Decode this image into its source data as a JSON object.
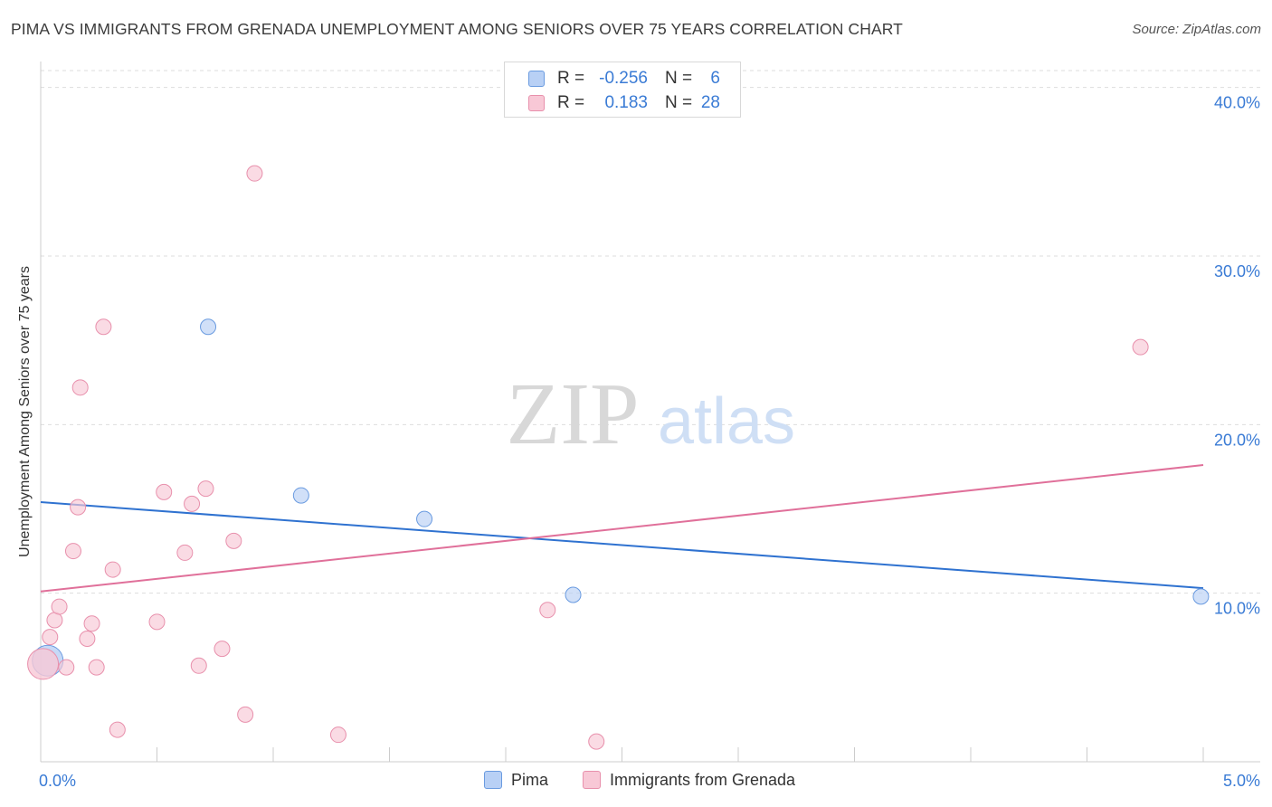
{
  "title": "PIMA VS IMMIGRANTS FROM GRENADA UNEMPLOYMENT AMONG SENIORS OVER 75 YEARS CORRELATION CHART",
  "source": "Source: ZipAtlas.com",
  "watermark": {
    "zip": "ZIP",
    "atlas": "atlas"
  },
  "legend": {
    "rows": [
      {
        "r_label": "R =",
        "r_value": "-0.256",
        "n_label": "N =",
        "n_value": "6"
      },
      {
        "r_label": "R =",
        "r_value": "0.183",
        "n_label": "N =",
        "n_value": "28"
      }
    ]
  },
  "colors": {
    "pima_fill": "#b8d0f5",
    "pima_stroke": "#6a9be0",
    "pima_line": "#2f72d0",
    "grenada_fill": "#f8c8d6",
    "grenada_stroke": "#e890ac",
    "grenada_line": "#e0709a",
    "tick_label": "#3a7bd5",
    "grid": "#dddddd"
  },
  "chart_data": {
    "type": "scatter",
    "xlabel": "",
    "ylabel": "Unemployment Among Seniors over 75 years",
    "xlim": [
      0,
      5
    ],
    "ylim": [
      0,
      41
    ],
    "x_tick_labels": [
      {
        "value": 0,
        "label": "0.0%"
      },
      {
        "value": 5,
        "label": "5.0%"
      }
    ],
    "y_tick_labels": [
      {
        "value": 10,
        "label": "10.0%"
      },
      {
        "value": 20,
        "label": "20.0%"
      },
      {
        "value": 30,
        "label": "30.0%"
      },
      {
        "value": 40,
        "label": "40.0%"
      }
    ],
    "series": [
      {
        "name": "Pima",
        "points": [
          {
            "x": 0.03,
            "y": 6.0,
            "big": true
          },
          {
            "x": 0.72,
            "y": 25.8
          },
          {
            "x": 1.12,
            "y": 15.8
          },
          {
            "x": 1.65,
            "y": 14.4
          },
          {
            "x": 2.29,
            "y": 9.9
          },
          {
            "x": 4.99,
            "y": 9.8
          }
        ],
        "trend": {
          "x0": 0,
          "y0": 15.4,
          "x1": 5,
          "y1": 10.3
        }
      },
      {
        "name": "Immigrants from Grenada",
        "points": [
          {
            "x": 0.01,
            "y": 5.8,
            "big": true
          },
          {
            "x": 0.04,
            "y": 7.4
          },
          {
            "x": 0.06,
            "y": 8.4
          },
          {
            "x": 0.08,
            "y": 9.2
          },
          {
            "x": 0.11,
            "y": 5.6
          },
          {
            "x": 0.14,
            "y": 12.5
          },
          {
            "x": 0.16,
            "y": 15.1
          },
          {
            "x": 0.17,
            "y": 22.2
          },
          {
            "x": 0.2,
            "y": 7.3
          },
          {
            "x": 0.22,
            "y": 8.2
          },
          {
            "x": 0.24,
            "y": 5.6
          },
          {
            "x": 0.27,
            "y": 25.8
          },
          {
            "x": 0.31,
            "y": 11.4
          },
          {
            "x": 0.33,
            "y": 1.9
          },
          {
            "x": 0.5,
            "y": 8.3
          },
          {
            "x": 0.53,
            "y": 16.0
          },
          {
            "x": 0.62,
            "y": 12.4
          },
          {
            "x": 0.65,
            "y": 15.3
          },
          {
            "x": 0.68,
            "y": 5.7
          },
          {
            "x": 0.71,
            "y": 16.2
          },
          {
            "x": 0.78,
            "y": 6.7
          },
          {
            "x": 0.83,
            "y": 13.1
          },
          {
            "x": 0.88,
            "y": 2.8
          },
          {
            "x": 0.92,
            "y": 34.9
          },
          {
            "x": 1.28,
            "y": 1.6
          },
          {
            "x": 2.18,
            "y": 9.0
          },
          {
            "x": 2.39,
            "y": 1.2
          },
          {
            "x": 4.73,
            "y": 24.6
          }
        ],
        "trend": {
          "x0": 0,
          "y0": 10.1,
          "x1": 5,
          "y1": 17.6
        }
      }
    ]
  }
}
